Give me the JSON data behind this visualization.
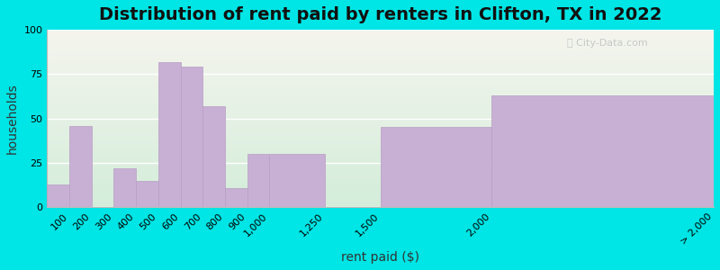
{
  "title": "Distribution of rent paid by renters in Clifton, TX in 2022",
  "xlabel": "rent paid ($)",
  "ylabel": "households",
  "tick_positions": [
    100,
    200,
    300,
    400,
    500,
    600,
    700,
    800,
    900,
    1000,
    1250,
    1500,
    2000,
    3000
  ],
  "tick_labels": [
    "100",
    "200",
    "300",
    "400",
    "500",
    "600",
    "700",
    "800",
    "900",
    "1,000",
    "1,250",
    "1,500",
    "2,000",
    "> 2,000"
  ],
  "bar_lefts": [
    0,
    100,
    200,
    300,
    400,
    500,
    600,
    700,
    800,
    900,
    1000,
    1250,
    1500,
    2000
  ],
  "bar_widths": [
    100,
    100,
    100,
    100,
    100,
    100,
    100,
    100,
    100,
    100,
    250,
    250,
    500,
    1000
  ],
  "values": [
    13,
    46,
    0,
    22,
    15,
    82,
    79,
    57,
    11,
    30,
    30,
    0,
    45,
    63
  ],
  "bar_color": "#c8afd4",
  "bar_edge_color": "#b89fc4",
  "ylim": [
    0,
    100
  ],
  "yticks": [
    0,
    25,
    50,
    75,
    100
  ],
  "xlim": [
    0,
    3000
  ],
  "bg_outer": "#00e5e5",
  "bg_plot_top": "#f5f5ee",
  "bg_plot_bottom": "#d4edda",
  "title_fontsize": 14,
  "axis_label_fontsize": 10,
  "tick_fontsize": 8
}
